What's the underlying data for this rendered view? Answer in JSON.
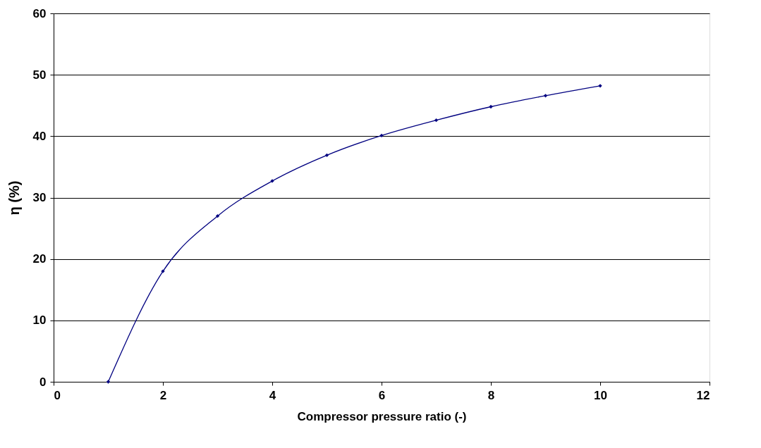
{
  "chart_data": {
    "type": "line",
    "xlabel": "Compressor pressure ratio (-)",
    "ylabel": "η (%)",
    "x": [
      1,
      2,
      3,
      4,
      5,
      6,
      7,
      8,
      9,
      10
    ],
    "series": [
      {
        "color": "#000080",
        "values": [
          0,
          18,
          27,
          32.7,
          36.9,
          40.1,
          42.6,
          44.8,
          46.6,
          48.2
        ]
      }
    ],
    "xlim": [
      0,
      12
    ],
    "xticks": [
      0,
      2,
      4,
      6,
      8,
      10,
      12
    ],
    "ylim": [
      0,
      60
    ],
    "yticks": [
      0,
      10,
      20,
      30,
      40,
      50,
      60
    ],
    "grid": "y",
    "marker": "diamond",
    "line_style": "solid"
  }
}
